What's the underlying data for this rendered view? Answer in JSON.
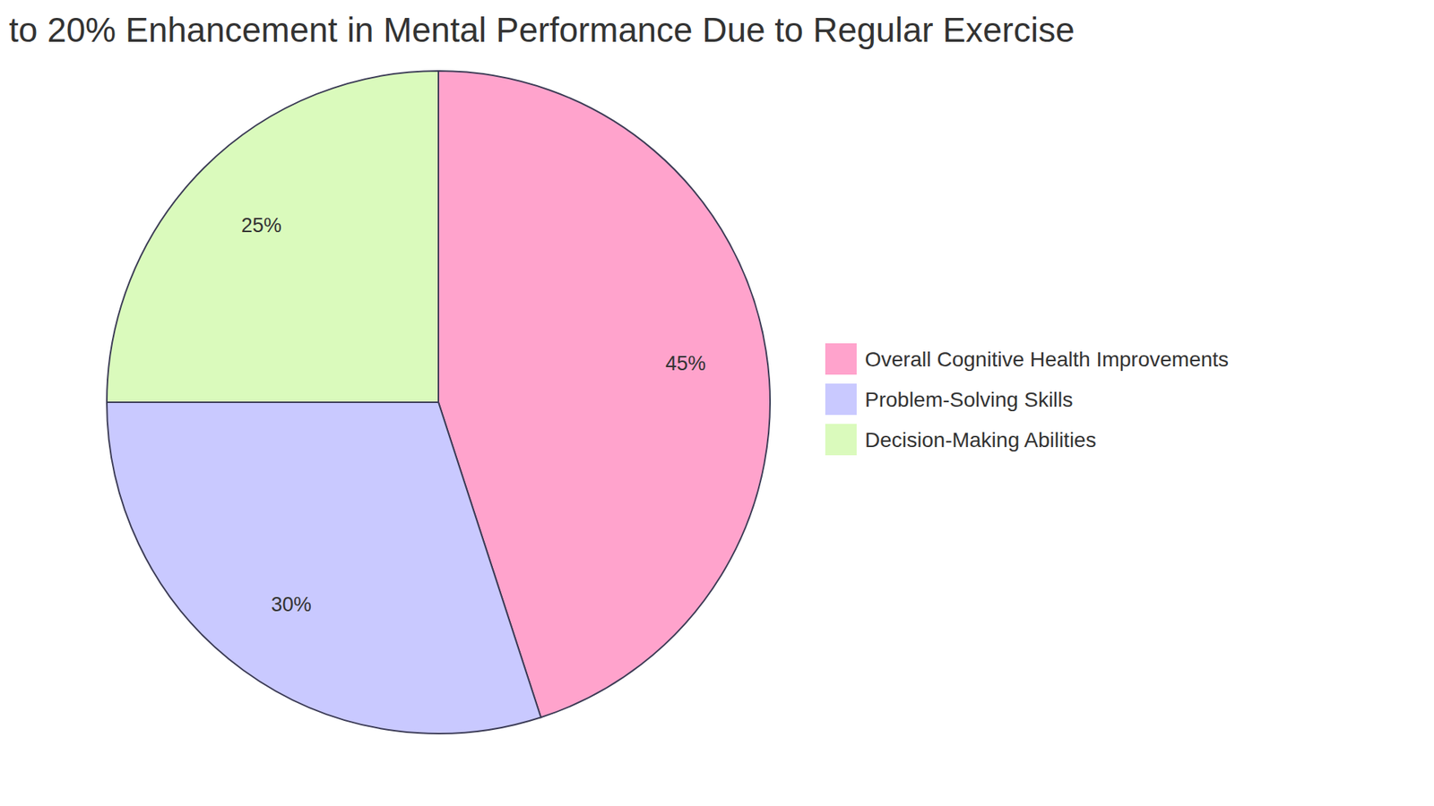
{
  "chart_data": {
    "type": "pie",
    "title": "to 20% Enhancement in Mental Performance Due to Regular Exercise",
    "categories": [
      "Overall Cognitive Health Improvements",
      "Problem-Solving Skills",
      "Decision-Making Abilities"
    ],
    "values": [
      45,
      30,
      25
    ],
    "value_labels": [
      "45%",
      "30%",
      "25%"
    ],
    "colors": [
      "#ffa3cc",
      "#c9c9ff",
      "#dafabc"
    ],
    "data_labels": true,
    "legend": "right"
  }
}
